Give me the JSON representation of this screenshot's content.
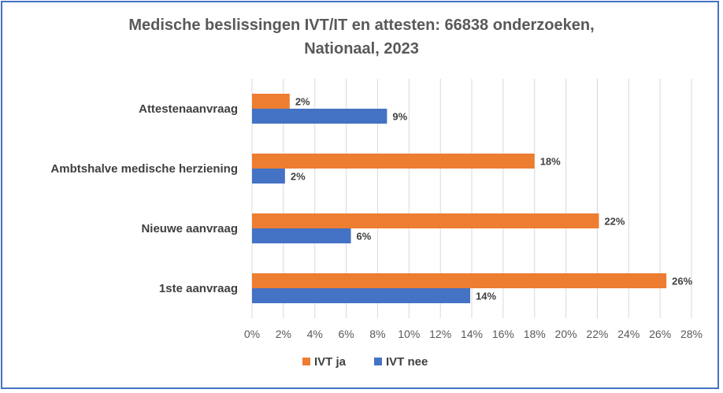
{
  "chart_data": {
    "type": "bar",
    "orientation": "horizontal",
    "title_lines": [
      "Medische beslissingen IVT/IT en attesten: 66838 onderzoeken,",
      "Nationaal,  2023"
    ],
    "categories": [
      "Attestenaanvraag",
      "Ambtshalve medische herziening",
      "Nieuwe aanvraag",
      "1ste aanvraag"
    ],
    "series": [
      {
        "name": "IVT ja",
        "color": "#ed7d31",
        "values": [
          2.4,
          18.0,
          22.1,
          26.4
        ],
        "labels": [
          "2%",
          "18%",
          "22%",
          "26%"
        ]
      },
      {
        "name": "IVT nee",
        "color": "#4472c4",
        "values": [
          8.6,
          2.1,
          6.3,
          13.9
        ],
        "labels": [
          "9%",
          "2%",
          "6%",
          "14%"
        ]
      }
    ],
    "xlim": [
      0,
      28
    ],
    "xticks": [
      "0%",
      "2%",
      "4%",
      "6%",
      "8%",
      "10%",
      "12%",
      "14%",
      "16%",
      "18%",
      "20%",
      "22%",
      "24%",
      "26%",
      "28%"
    ],
    "grid": true,
    "legend_position": "bottom"
  }
}
